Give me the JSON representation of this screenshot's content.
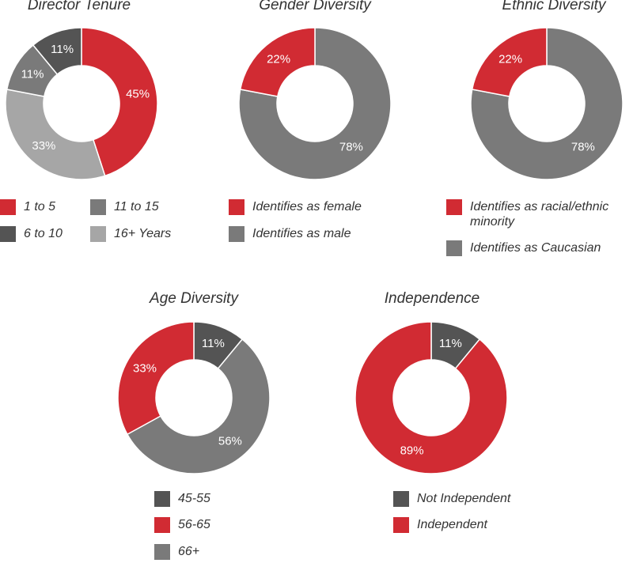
{
  "chart_data": [
    {
      "type": "donut",
      "title": "Director Tenure",
      "slices": [
        {
          "label": "1 to 5",
          "value": 45,
          "display": "45%",
          "color": "#d12b33"
        },
        {
          "label": "16+ Years",
          "value": 33,
          "display": "33%",
          "color": "#a6a6a6"
        },
        {
          "label": "11 to 15",
          "value": 11,
          "display": "11%",
          "color": "#7a7a7a"
        },
        {
          "label": "6 to 10",
          "value": 11,
          "display": "11%",
          "color": "#545454"
        }
      ],
      "legend": [
        {
          "label": "1 to 5",
          "color": "#d12b33"
        },
        {
          "label": "11 to 15",
          "color": "#7a7a7a"
        },
        {
          "label": "6 to 10",
          "color": "#545454"
        },
        {
          "label": "16+ Years",
          "color": "#a6a6a6"
        }
      ]
    },
    {
      "type": "donut",
      "title": "Gender Diversity",
      "slices": [
        {
          "label": "Identifies as male",
          "value": 78,
          "display": "78%",
          "color": "#7a7a7a"
        },
        {
          "label": "Identifies as female",
          "value": 22,
          "display": "22%",
          "color": "#d12b33"
        }
      ],
      "legend": [
        {
          "label": "Identifies as female",
          "color": "#d12b33"
        },
        {
          "label": "Identifies as male",
          "color": "#7a7a7a"
        }
      ]
    },
    {
      "type": "donut",
      "title": "Ethnic Diversity",
      "slices": [
        {
          "label": "Identifies as Caucasian",
          "value": 78,
          "display": "78%",
          "color": "#7a7a7a"
        },
        {
          "label": "Identifies as racial/ethnic minority",
          "value": 22,
          "display": "22%",
          "color": "#d12b33"
        }
      ],
      "legend": [
        {
          "label": "Identifies as racial/ethnic minority",
          "color": "#d12b33"
        },
        {
          "label": "Identifies as Caucasian",
          "color": "#7a7a7a"
        }
      ]
    },
    {
      "type": "donut",
      "title": "Age Diversity",
      "slices": [
        {
          "label": "45-55",
          "value": 11,
          "display": "11%",
          "color": "#545454"
        },
        {
          "label": "66+",
          "value": 56,
          "display": "56%",
          "color": "#7a7a7a"
        },
        {
          "label": "56-65",
          "value": 33,
          "display": "33%",
          "color": "#d12b33"
        }
      ],
      "legend": [
        {
          "label": "45-55",
          "color": "#545454"
        },
        {
          "label": "56-65",
          "color": "#d12b33"
        },
        {
          "label": "66+",
          "color": "#7a7a7a"
        }
      ]
    },
    {
      "type": "donut",
      "title": "Independence",
      "slices": [
        {
          "label": "Not Independent",
          "value": 11,
          "display": "11%",
          "color": "#545454"
        },
        {
          "label": "Independent",
          "value": 89,
          "display": "89%",
          "color": "#d12b33"
        }
      ],
      "legend": [
        {
          "label": "Not Independent",
          "color": "#545454"
        },
        {
          "label": "Independent",
          "color": "#d12b33"
        }
      ]
    }
  ]
}
